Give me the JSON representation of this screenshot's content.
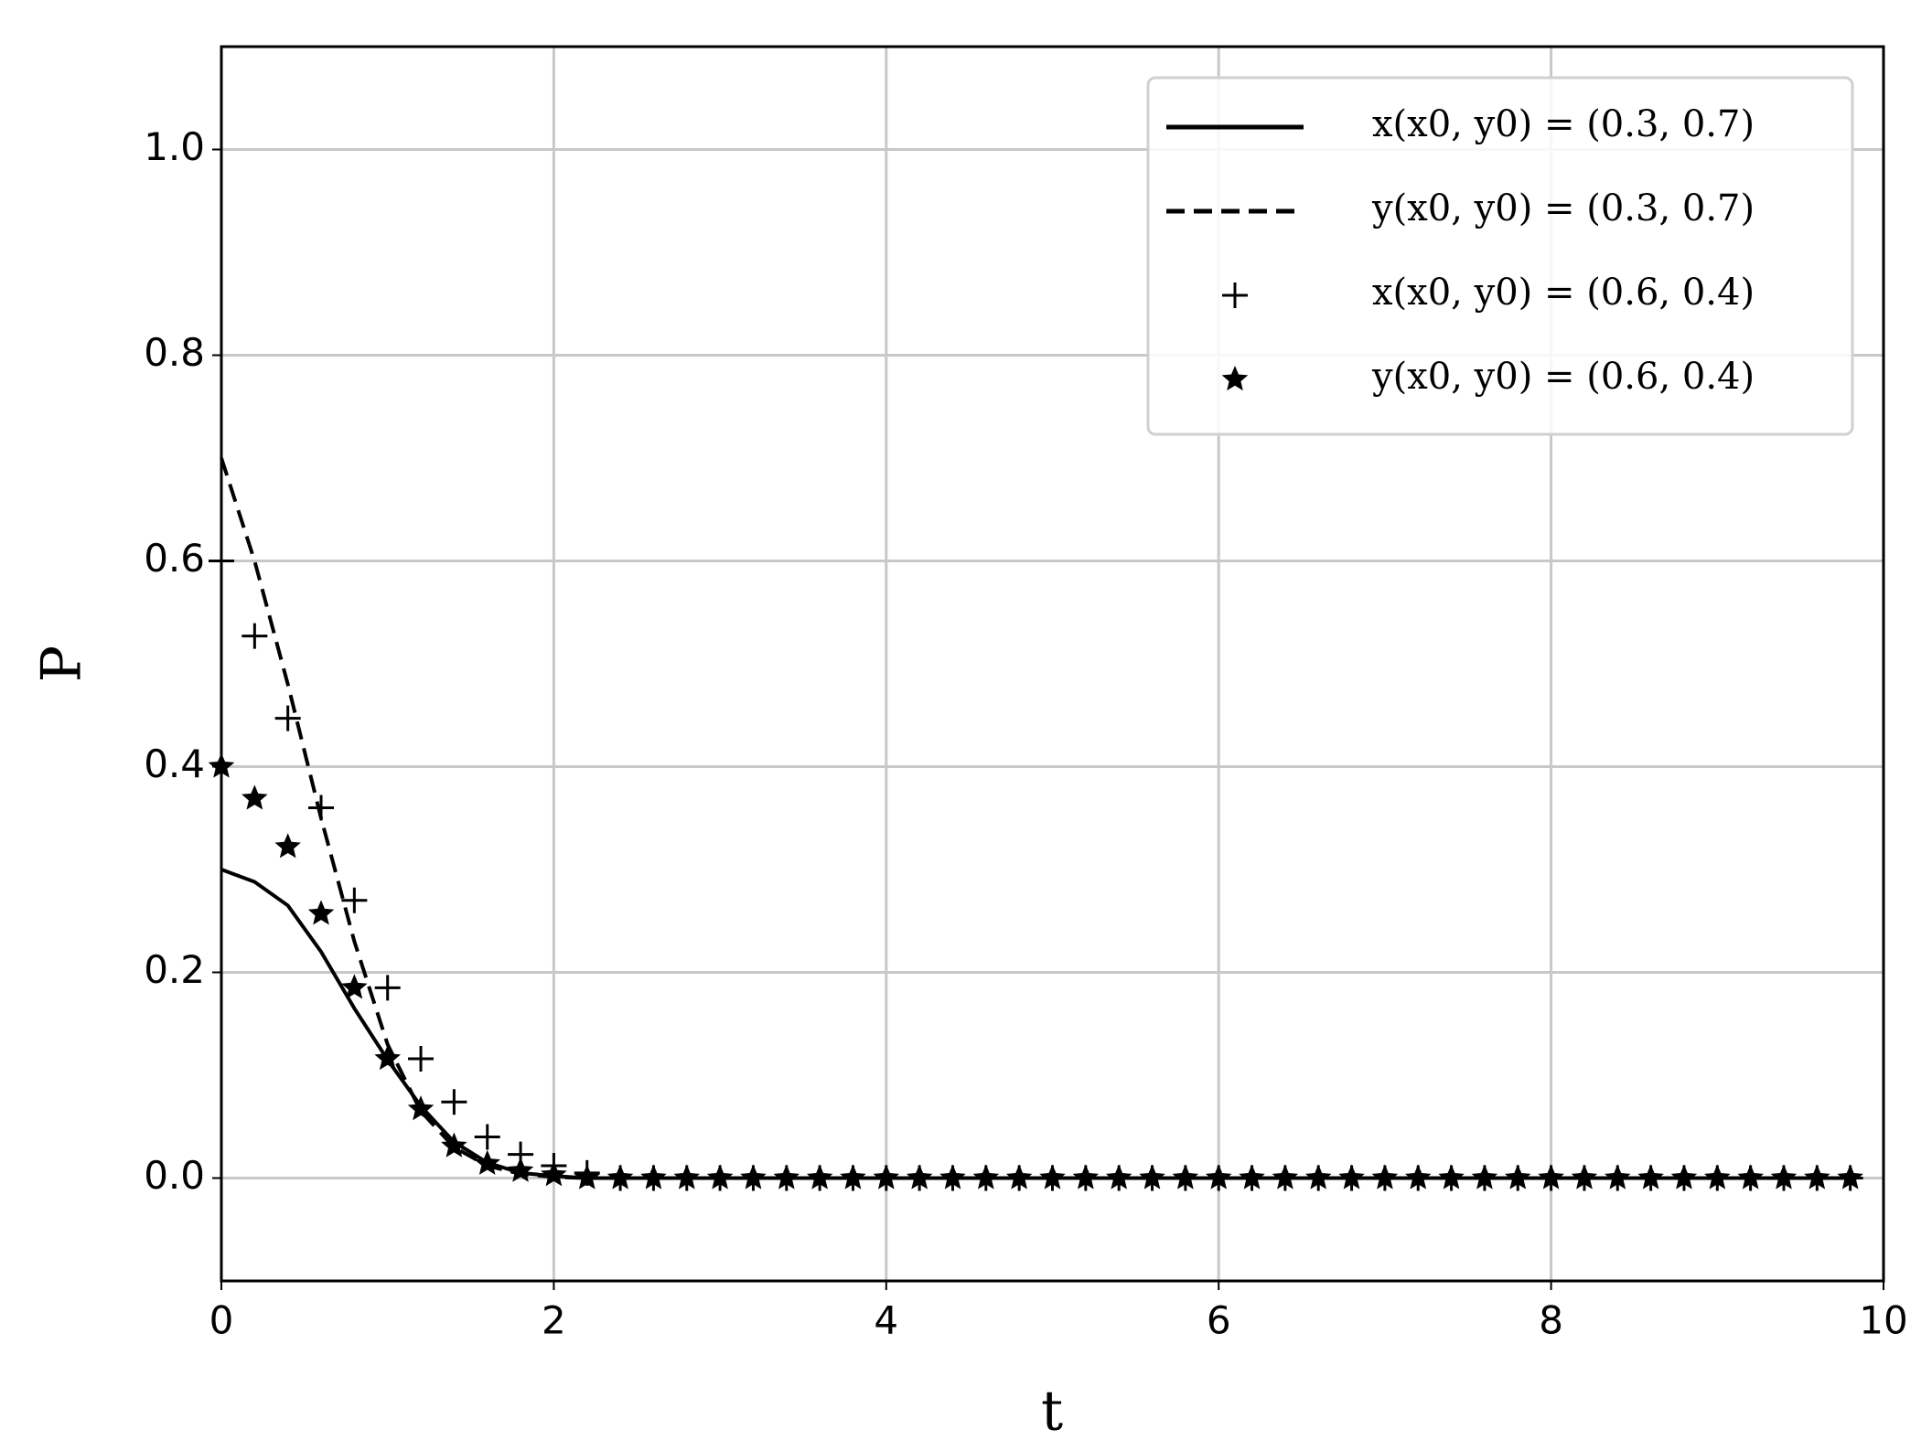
{
  "chart_data": {
    "type": "line",
    "xlabel": "t",
    "ylabel": "P",
    "x": [
      0,
      0.2,
      0.4,
      0.6,
      0.8,
      1.0,
      1.2,
      1.4,
      1.6,
      1.8,
      2.0,
      2.2,
      2.4,
      2.6,
      2.8,
      3.0,
      3.2,
      3.4,
      3.6,
      3.8,
      4.0,
      4.2,
      4.4,
      4.6,
      4.8,
      5.0,
      5.2,
      5.4,
      5.6,
      5.8,
      6.0,
      6.2,
      6.4,
      6.6,
      6.8,
      7.0,
      7.2,
      7.4,
      7.6,
      7.8,
      8.0,
      8.2,
      8.4,
      8.6,
      8.8,
      9.0,
      9.2,
      9.4,
      9.6,
      9.8
    ],
    "series": [
      {
        "name": "x(x0, y0) = (0.3, 0.7)",
        "color": "#000000",
        "style": "solid",
        "values": [
          0.3,
          0.288,
          0.265,
          0.22,
          0.165,
          0.115,
          0.07,
          0.035,
          0.015,
          0.005,
          0.002,
          0,
          0,
          0,
          0,
          0,
          0,
          0,
          0,
          0,
          0,
          0,
          0,
          0,
          0,
          0,
          0,
          0,
          0,
          0,
          0,
          0,
          0,
          0,
          0,
          0,
          0,
          0,
          0,
          0,
          0,
          0,
          0,
          0,
          0,
          0,
          0,
          0,
          0,
          0
        ]
      },
      {
        "name": "y(x0, y0) = (0.3, 0.7)",
        "color": "#000000",
        "style": "dashed",
        "values": [
          0.7,
          0.6,
          0.48,
          0.35,
          0.23,
          0.13,
          0.065,
          0.03,
          0.012,
          0.004,
          0.001,
          0,
          0,
          0,
          0,
          0,
          0,
          0,
          0,
          0,
          0,
          0,
          0,
          0,
          0,
          0,
          0,
          0,
          0,
          0,
          0,
          0,
          0,
          0,
          0,
          0,
          0,
          0,
          0,
          0,
          0,
          0,
          0,
          0,
          0,
          0,
          0,
          0,
          0,
          0
        ]
      },
      {
        "name": "x(x0, y0) = (0.6, 0.4)",
        "color": "#000000",
        "style": "plus",
        "values": [
          0.6,
          0.527,
          0.447,
          0.36,
          0.27,
          0.185,
          0.116,
          0.074,
          0.04,
          0.023,
          0.012,
          0.005,
          0,
          0,
          0,
          0,
          0,
          0,
          0,
          0,
          0,
          0,
          0,
          0,
          0,
          0,
          0,
          0,
          0,
          0,
          0,
          0,
          0,
          0,
          0,
          0,
          0,
          0,
          0,
          0,
          0,
          0,
          0,
          0,
          0,
          0,
          0,
          0,
          0,
          0
        ]
      },
      {
        "name": "y(x0, y0) = (0.6, 0.4)",
        "color": "#000000",
        "style": "star",
        "values": [
          0.4,
          0.369,
          0.322,
          0.257,
          0.185,
          0.116,
          0.067,
          0.031,
          0.014,
          0.007,
          0.003,
          0,
          0,
          0,
          0,
          0,
          0,
          0,
          0,
          0,
          0,
          0,
          0,
          0,
          0,
          0,
          0,
          0,
          0,
          0,
          0,
          0,
          0,
          0,
          0,
          0,
          0,
          0,
          0,
          0,
          0,
          0,
          0,
          0,
          0,
          0,
          0,
          0,
          0,
          0
        ]
      }
    ],
    "xlim": [
      0,
      10
    ],
    "ylim": [
      -0.1,
      1.1
    ],
    "xticks": [
      0,
      2,
      4,
      6,
      8,
      10
    ],
    "yticks": [
      {
        "value": 0,
        "label": "0.0"
      },
      0.2,
      0.4,
      0.6,
      0.8,
      {
        "value": 1,
        "label": "1.0"
      }
    ],
    "grid": true,
    "legend": "upper right"
  }
}
